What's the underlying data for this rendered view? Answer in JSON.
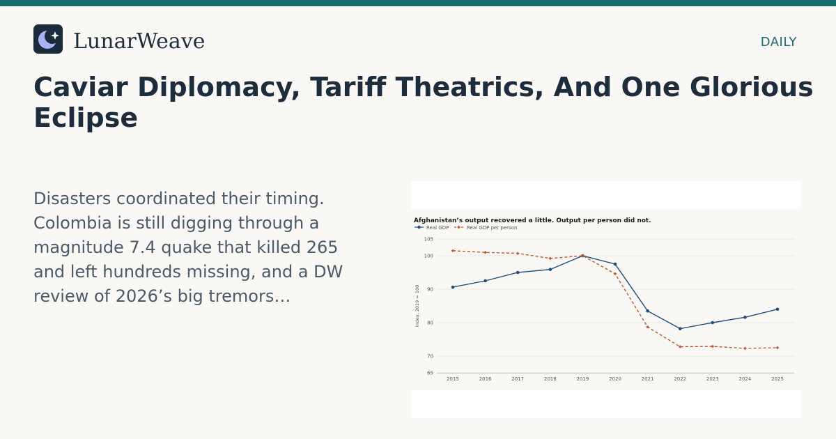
{
  "brand": {
    "name": "LunarWeave",
    "section": "DAILY",
    "logo_icon": "moon-star-icon",
    "accent": "#1a6b6e"
  },
  "article": {
    "headline": "Caviar Diplomacy, Tariff Theatrics, And One Glorious Eclipse",
    "summary": "Disasters coordinated their timing. Colombia is still digging through a magnitude 7.4 quake that killed 265 and left hundreds missing, and a DW review of 2026’s big tremors…"
  },
  "chart_data": {
    "type": "line",
    "title": "Afghanistan’s output recovered a little. Output per person did not.",
    "xlabel": "",
    "ylabel": "Index, 2019 = 100",
    "x": [
      "2015",
      "2016",
      "2017",
      "2018",
      "2019",
      "2020",
      "2021",
      "2022",
      "2023",
      "2024",
      "2025"
    ],
    "y_ticks": [
      65,
      70,
      80,
      90,
      100,
      105
    ],
    "ylim": [
      65,
      105
    ],
    "grid": true,
    "legend": "top-left",
    "series": [
      {
        "name": "Real GDP",
        "color": "#1f4e79",
        "style": "solid",
        "marker": "circle",
        "values": [
          90.6,
          92.5,
          95.0,
          95.9,
          100.0,
          97.5,
          83.5,
          78.2,
          80.0,
          81.6,
          84.0
        ]
      },
      {
        "name": "Real GDP per person",
        "color": "#c0592b",
        "style": "dashed",
        "marker": "diamond",
        "values": [
          101.5,
          101.0,
          100.7,
          99.2,
          100.0,
          94.6,
          78.7,
          72.8,
          72.9,
          72.3,
          72.5
        ]
      }
    ]
  }
}
